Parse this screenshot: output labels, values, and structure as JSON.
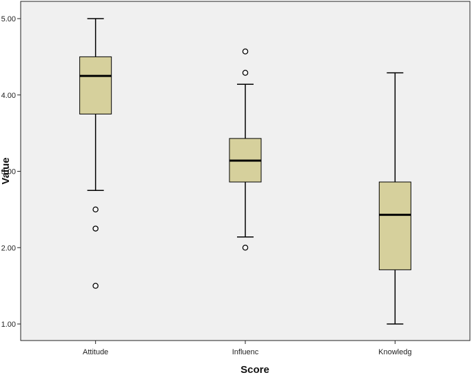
{
  "chart_data": {
    "type": "boxplot",
    "xlabel": "Score",
    "ylabel": "Value",
    "ylim": [
      0.9,
      5.2
    ],
    "yticks": [
      1.0,
      2.0,
      3.0,
      4.0,
      5.0
    ],
    "ytick_labels": [
      "1.00",
      "2.00",
      "3.00",
      "4.00",
      "5.00"
    ],
    "grid": false,
    "categories": [
      "Attitude",
      "Influenc",
      "Knowledg"
    ],
    "boxes": [
      {
        "name": "Attitude",
        "whisker_low": 2.75,
        "q1": 3.75,
        "median": 4.25,
        "q3": 4.5,
        "whisker_high": 5.0,
        "outliers": [
          2.5,
          2.25,
          1.5
        ]
      },
      {
        "name": "Influenc",
        "whisker_low": 2.14,
        "q1": 2.86,
        "median": 3.14,
        "q3": 3.43,
        "whisker_high": 4.14,
        "outliers": [
          4.57,
          4.29,
          2.0
        ]
      },
      {
        "name": "Knowledg",
        "whisker_low": 1.0,
        "q1": 1.71,
        "median": 2.43,
        "q3": 2.86,
        "whisker_high": 4.29,
        "outliers": []
      }
    ],
    "colors": {
      "box_fill": "#d6d09c",
      "plot_background": "#f0f0f0",
      "stroke": "#000000"
    }
  }
}
